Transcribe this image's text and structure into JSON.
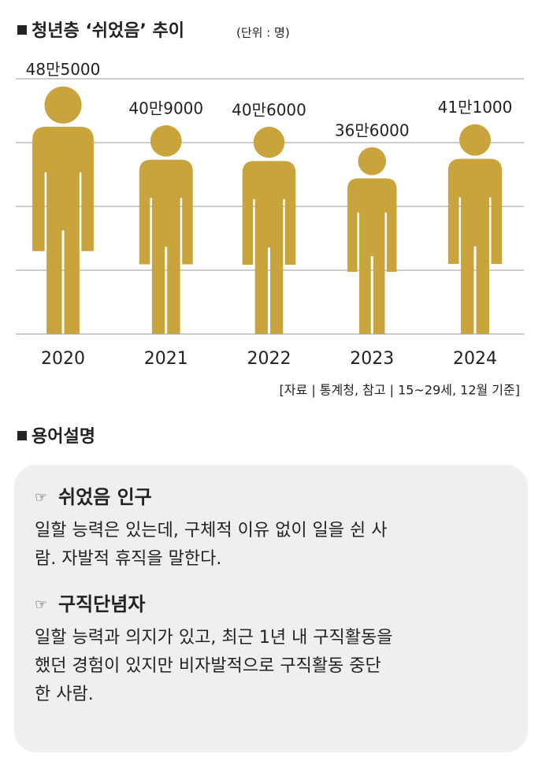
{
  "chart_data": {
    "type": "pictograph",
    "title": "청년층 ‘쉬었음’ 추이",
    "subtitle": "(단위 : 명)",
    "categories": [
      "2020",
      "2021",
      "2022",
      "2023",
      "2024"
    ],
    "values": [
      485000,
      409000,
      406000,
      366000,
      411000
    ],
    "value_labels": [
      "48만5000",
      "40만9000",
      "40만6000",
      "36만6000",
      "41만1000"
    ],
    "color": "#c9a43c",
    "ylim": [
      0,
      500000
    ],
    "yticks": [
      0,
      125000,
      250000,
      375000,
      500000
    ],
    "grid": true,
    "note": "[자료 | 통계청, 참고 | 15~29세, 12월 기준]"
  },
  "glossary": {
    "title": "용어설명",
    "items": [
      {
        "term": "쉬었음 인구",
        "lines": [
          "일할 능력은 있는데, 구체적 이유 없이 일을 쉰 사",
          "람. 자발적 휴직을 말한다."
        ]
      },
      {
        "term": "구직단념자",
        "lines": [
          "일할 능력과 의지가 있고, 최근 1년 내 구직활동을",
          "했던 경험이 있지만 비자발적으로 구직활동 중단",
          "한 사람."
        ]
      }
    ]
  }
}
